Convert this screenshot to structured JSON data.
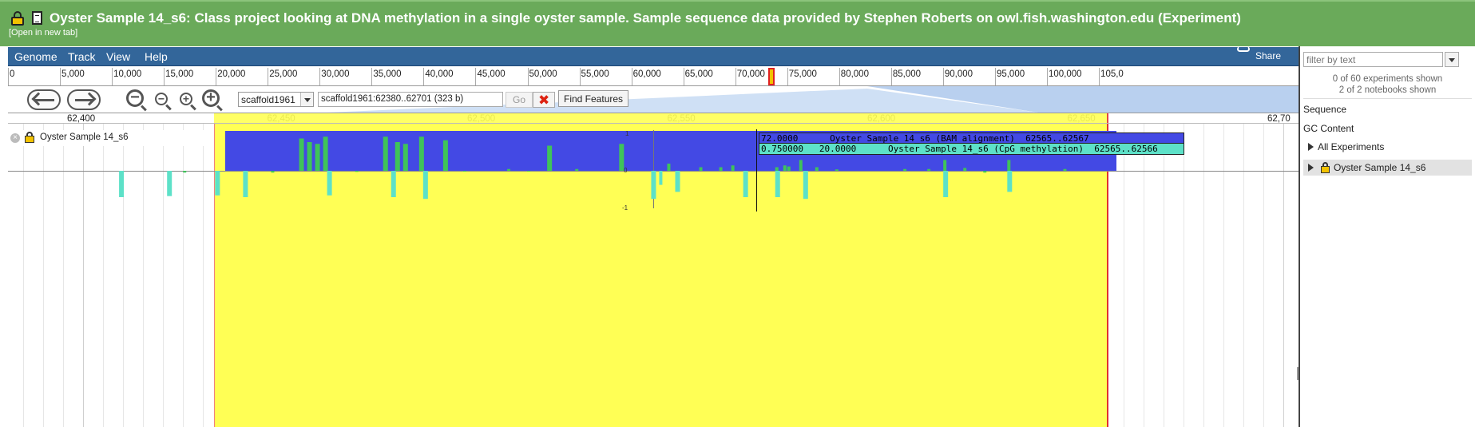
{
  "header": {
    "title": "Oyster Sample 14_s6: Class project looking at DNA methylation in a single oyster sample. Sample sequence data provided by Stephen Roberts on owl.fish.washington.edu (Experiment)",
    "open_new_tab": "[Open in new tab]"
  },
  "menu": {
    "genome": "Genome",
    "track": "Track",
    "view": "View",
    "help": "Help",
    "share": "Share"
  },
  "overview_ticks": [
    "0",
    "5,000",
    "10,000",
    "15,000",
    "20,000",
    "25,000",
    "30,000",
    "35,000",
    "40,000",
    "45,000",
    "50,000",
    "55,000",
    "60,000",
    "65,000",
    "70,000",
    "75,000",
    "80,000",
    "85,000",
    "90,000",
    "95,000",
    "100,000",
    "105,0"
  ],
  "nav": {
    "ref_seq": "scaffold1961",
    "location": "scaffold1961:62380..62701 (323 b)",
    "go_label": "Go",
    "find_features": "Find Features"
  },
  "detail_ticks": [
    "62,400",
    "62,450",
    "62,500",
    "62,550",
    "62,600",
    "62,650",
    "62,70"
  ],
  "track": {
    "name": "Oyster Sample 14_s6",
    "y_labels": [
      "1",
      "0",
      "-1"
    ]
  },
  "tooltip": {
    "row1": "72.0000      Oyster Sample 14_s6 (BAM alignment)  62565..62567",
    "row2": "0.750000   20.0000      Oyster Sample 14_s6 (CpG methylation)  62565..62566"
  },
  "right_panel": {
    "filter_placeholder": "filter by text",
    "experiments_shown": "0 of 60 experiments shown",
    "notebooks_shown": "2 of 2 notebooks shown",
    "sequence": "Sequence",
    "gc_content": "GC Content",
    "all_experiments": "All Experiments",
    "oyster_sample": "Oyster Sample 14_s6"
  },
  "colors": {
    "header_green": "#6aaa5a",
    "menu_blue": "#33669a",
    "coverage_blue": "#4349e4",
    "methylation_green": "#3fc35a",
    "methylation_cyan": "#5de1c8",
    "highlight_yellow": "#ffff55"
  },
  "methylation_sites": [
    {
      "pos": 62409,
      "dir": "down",
      "value": 0.75
    },
    {
      "pos": 62421,
      "dir": "down",
      "value": 0.72
    },
    {
      "pos": 62425,
      "dir": "down",
      "value": 0.05
    },
    {
      "pos": 62433,
      "dir": "down",
      "value": 0.7
    },
    {
      "pos": 62440,
      "dir": "down",
      "value": 0.75
    },
    {
      "pos": 62447,
      "dir": "down",
      "value": 0.05
    },
    {
      "pos": 62454,
      "dir": "up",
      "value": 0.9
    },
    {
      "pos": 62456,
      "dir": "up",
      "value": 0.8
    },
    {
      "pos": 62458,
      "dir": "up",
      "value": 0.75
    },
    {
      "pos": 62460,
      "dir": "up",
      "value": 0.95
    },
    {
      "pos": 62461,
      "dir": "down",
      "value": 0.7
    },
    {
      "pos": 62468,
      "dir": "down",
      "value": 0.03
    },
    {
      "pos": 62475,
      "dir": "up",
      "value": 0.95
    },
    {
      "pos": 62477,
      "dir": "down",
      "value": 0.75
    },
    {
      "pos": 62478,
      "dir": "up",
      "value": 0.8
    },
    {
      "pos": 62480,
      "dir": "up",
      "value": 0.75
    },
    {
      "pos": 62484,
      "dir": "up",
      "value": 0.95
    },
    {
      "pos": 62485,
      "dir": "down",
      "value": 0.8
    },
    {
      "pos": 62490,
      "dir": "up",
      "value": 0.85
    },
    {
      "pos": 62495,
      "dir": "down",
      "value": 0.02
    },
    {
      "pos": 62506,
      "dir": "up",
      "value": 0.05
    },
    {
      "pos": 62511,
      "dir": "down",
      "value": 0.02
    },
    {
      "pos": 62516,
      "dir": "up",
      "value": 0.7
    },
    {
      "pos": 62523,
      "dir": "up",
      "value": 0.05
    },
    {
      "pos": 62534,
      "dir": "up",
      "value": 0.75
    },
    {
      "pos": 62542,
      "dir": "down",
      "value": 0.8
    },
    {
      "pos": 62544,
      "dir": "down",
      "value": 0.4
    },
    {
      "pos": 62546,
      "dir": "up",
      "value": 0.2
    },
    {
      "pos": 62548,
      "dir": "down",
      "value": 0.6
    },
    {
      "pos": 62554,
      "dir": "up",
      "value": 0.1
    },
    {
      "pos": 62559,
      "dir": "up",
      "value": 0.1
    },
    {
      "pos": 62562,
      "dir": "up",
      "value": 0.15
    },
    {
      "pos": 62565,
      "dir": "down",
      "value": 0.75
    },
    {
      "pos": 62573,
      "dir": "up",
      "value": 0.1
    },
    {
      "pos": 62573,
      "dir": "down",
      "value": 0.75
    },
    {
      "pos": 62575,
      "dir": "up",
      "value": 0.15
    },
    {
      "pos": 62576,
      "dir": "up",
      "value": 0.12
    },
    {
      "pos": 62579,
      "dir": "up",
      "value": 0.3
    },
    {
      "pos": 62580,
      "dir": "down",
      "value": 0.8
    },
    {
      "pos": 62583,
      "dir": "up",
      "value": 0.1
    },
    {
      "pos": 62588,
      "dir": "up",
      "value": 0.04
    },
    {
      "pos": 62605,
      "dir": "up",
      "value": 0.05
    },
    {
      "pos": 62611,
      "dir": "up",
      "value": 0.05
    },
    {
      "pos": 62615,
      "dir": "up",
      "value": 0.3
    },
    {
      "pos": 62615,
      "dir": "down",
      "value": 0.75
    },
    {
      "pos": 62620,
      "dir": "up",
      "value": 0.08
    },
    {
      "pos": 62625,
      "dir": "down",
      "value": 0.05
    },
    {
      "pos": 62631,
      "dir": "up",
      "value": 0.3
    },
    {
      "pos": 62631,
      "dir": "down",
      "value": 0.6
    },
    {
      "pos": 62645,
      "dir": "up",
      "value": 0.05
    }
  ]
}
